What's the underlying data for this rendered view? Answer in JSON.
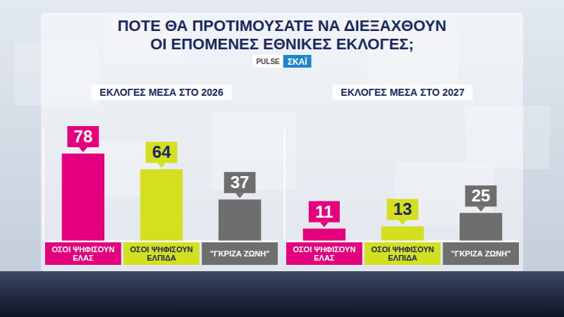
{
  "title": "ΠΟΤΕ ΘΑ ΠΡΟΤΙΜΟΥΣΑΤΕ ΝΑ ΔΙΕΞΑΧΘΟΥΝ ΟΙ ΕΠΟΜΕΝΕΣ ΕΘΝΙΚΕΣ ΕΚΛΟΓΕΣ;",
  "logos": [
    "PULSE",
    "ΣΚΑΪ"
  ],
  "chart_data": [
    {
      "type": "bar",
      "title": "ΕΚΛΟΓΕΣ ΜΕΣΑ ΣΤΟ 2026",
      "categories": [
        "ΟΣΟΙ ΨΗΦΙΣΟΥΝ ΕΛΑΣ",
        "ΟΣΟΙ ΨΗΦΙΣΟΥΝ ΕΛΠΙΔΑ",
        "\"ΓΚΡΙΖΑ ΖΩΝΗ\""
      ],
      "values": [
        78,
        64,
        37
      ],
      "colors": [
        "#e4007c",
        "#d4df1f",
        "#6e6e6e"
      ],
      "ylim": [
        0,
        100
      ],
      "data_labels": true,
      "tick_labels": "x"
    },
    {
      "type": "bar",
      "title": "ΕΚΛΟΓΕΣ ΜΕΣΑ ΣΤΟ 2027",
      "categories": [
        "ΟΣΟΙ ΨΗΦΙΣΟΥΝ ΕΛΑΣ",
        "ΟΣΟΙ ΨΗΦΙΣΟΥΝ ΕΛΠΙΔΑ",
        "\"ΓΚΡΙΖΑ ΖΩΝΗ\""
      ],
      "values": [
        11,
        13,
        25
      ],
      "colors": [
        "#e4007c",
        "#d4df1f",
        "#6e6e6e"
      ],
      "ylim": [
        0,
        100
      ],
      "data_labels": true,
      "tick_labels": "x"
    }
  ]
}
